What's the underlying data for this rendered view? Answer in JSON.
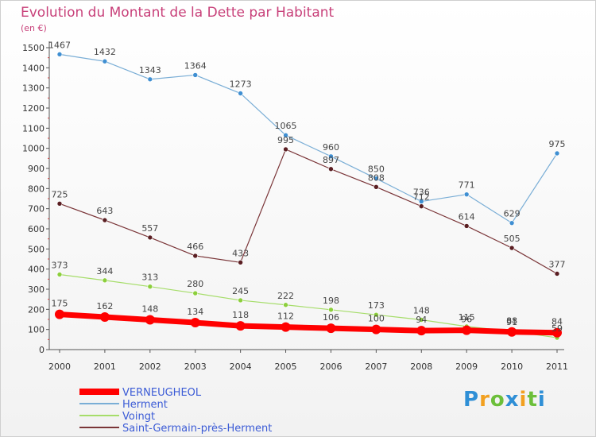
{
  "chart_data": {
    "type": "line",
    "title": "Evolution du Montant de la Dette par Habitant",
    "subtitle": "(en €)",
    "x": [
      "2000",
      "2001",
      "2002",
      "2003",
      "2004",
      "2005",
      "2006",
      "2007",
      "2008",
      "2009",
      "2010",
      "2011"
    ],
    "ylim": [
      0,
      1500
    ],
    "yticks": [
      0,
      100,
      200,
      300,
      400,
      500,
      600,
      700,
      800,
      900,
      1000,
      1100,
      1200,
      1300,
      1400,
      1500
    ],
    "grid": false,
    "legend_position": "bottom-left",
    "series": [
      {
        "name": "Herment",
        "color": "#7aaed6",
        "marker": "#3f8fd2",
        "width": 1.2,
        "values": [
          1467,
          1432,
          1343,
          1364,
          1273,
          1065,
          960,
          850,
          736,
          771,
          629,
          975
        ],
        "labels": [
          "1467",
          "1432",
          "1343",
          "1364",
          "1273",
          "1065",
          "960",
          "850",
          "736",
          "771",
          "629",
          "975"
        ]
      },
      {
        "name": "Saint-Germain-près-Herment",
        "color": "#7a3538",
        "marker": "#5a1e22",
        "width": 1.2,
        "values": [
          725,
          643,
          557,
          466,
          433,
          995,
          897,
          808,
          712,
          614,
          505,
          377
        ],
        "labels": [
          "725",
          "643",
          "557",
          "466",
          "433",
          "995",
          "897",
          "808",
          "712",
          "614",
          "505",
          "377"
        ]
      },
      {
        "name": "Voingt",
        "color": "#a6dd6a",
        "marker": "#8ccf3c",
        "width": 1.2,
        "values": [
          373,
          344,
          313,
          280,
          245,
          222,
          198,
          173,
          148,
          115,
          91,
          59
        ],
        "labels": [
          "373",
          "344",
          "313",
          "280",
          "245",
          "222",
          "198",
          "173",
          "148",
          "115",
          "91",
          "59"
        ]
      },
      {
        "name": "VERNEUGHEOL",
        "color": "#ff0000",
        "marker": "#ff0000",
        "width": 7,
        "values": [
          175,
          162,
          148,
          134,
          118,
          112,
          106,
          100,
          94,
          96,
          88,
          84
        ],
        "labels": [
          "175",
          "162",
          "148",
          "134",
          "118",
          "112",
          "106",
          "100",
          "94",
          "96",
          "88",
          "84"
        ]
      }
    ],
    "legend": [
      "VERNEUGHEOL",
      "Herment",
      "Voingt",
      "Saint-Germain-près-Herment"
    ]
  },
  "logo": {
    "letters": [
      "P",
      "r",
      "o",
      "x",
      "i",
      "t",
      "i"
    ],
    "colors": [
      "#2f8fd6",
      "#f2a020",
      "#6cbf3a",
      "#2f8fd6",
      "#f2a020",
      "#6cbf3a",
      "#2f8fd6"
    ]
  }
}
